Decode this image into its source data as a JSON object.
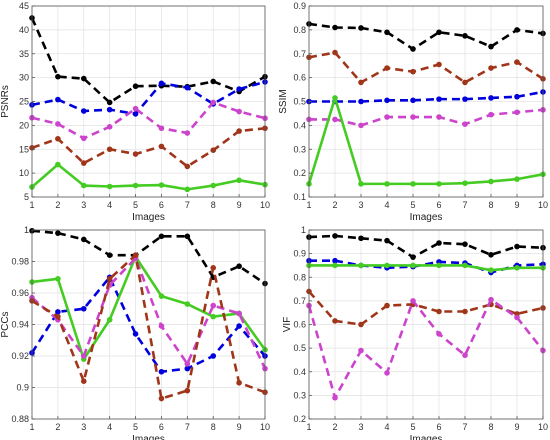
{
  "chart_data": [
    {
      "type": "line",
      "xlabel": "Images",
      "ylabel": "PSNRs",
      "x": [
        1,
        2,
        3,
        4,
        5,
        6,
        7,
        8,
        9,
        10
      ],
      "xlim": [
        1,
        10
      ],
      "ylim": [
        5,
        45
      ],
      "yticks": [
        5,
        10,
        15,
        20,
        25,
        30,
        35,
        40,
        45
      ],
      "grid": true,
      "series": [
        {
          "color": "#000000",
          "style": "dashed",
          "values": [
            42.5,
            30.2,
            29.8,
            24.8,
            28.2,
            28.3,
            28.1,
            29.2,
            27.1,
            30.2
          ]
        },
        {
          "color": "#0000dd",
          "style": "dashed",
          "values": [
            24.3,
            25.4,
            23.0,
            23.3,
            22.4,
            28.8,
            27.9,
            24.5,
            27.6,
            29.1
          ]
        },
        {
          "color": "#cc44cc",
          "style": "dashed",
          "values": [
            21.6,
            20.3,
            17.3,
            19.7,
            23.5,
            19.4,
            18.4,
            24.8,
            22.9,
            21.5
          ]
        },
        {
          "color": "#a0351a",
          "style": "dashed",
          "values": [
            15.3,
            17.2,
            12.1,
            15.0,
            14.0,
            15.6,
            11.4,
            14.8,
            18.8,
            19.4
          ]
        },
        {
          "color": "#44cc22",
          "style": "solid",
          "values": [
            7.1,
            11.8,
            7.4,
            7.2,
            7.4,
            7.5,
            6.6,
            7.4,
            8.5,
            7.6
          ]
        }
      ]
    },
    {
      "type": "line",
      "xlabel": "Images",
      "ylabel": "SSIM",
      "x": [
        1,
        2,
        3,
        4,
        5,
        6,
        7,
        8,
        9,
        10
      ],
      "xlim": [
        1,
        10
      ],
      "ylim": [
        0.1,
        0.9
      ],
      "yticks": [
        0.1,
        0.2,
        0.3,
        0.4,
        0.5,
        0.6,
        0.7,
        0.8,
        0.9
      ],
      "grid": true,
      "series": [
        {
          "color": "#000000",
          "style": "dashed",
          "values": [
            0.825,
            0.81,
            0.808,
            0.79,
            0.72,
            0.79,
            0.775,
            0.73,
            0.8,
            0.785
          ]
        },
        {
          "color": "#a0351a",
          "style": "dashed",
          "values": [
            0.685,
            0.705,
            0.58,
            0.64,
            0.625,
            0.655,
            0.58,
            0.64,
            0.665,
            0.595
          ]
        },
        {
          "color": "#0000dd",
          "style": "dashed",
          "values": [
            0.5,
            0.5,
            0.5,
            0.505,
            0.505,
            0.51,
            0.51,
            0.515,
            0.52,
            0.54
          ]
        },
        {
          "color": "#cc44cc",
          "style": "dashed",
          "values": [
            0.425,
            0.425,
            0.4,
            0.435,
            0.435,
            0.435,
            0.405,
            0.445,
            0.455,
            0.465
          ]
        },
        {
          "color": "#44cc22",
          "style": "solid",
          "values": [
            0.155,
            0.515,
            0.155,
            0.155,
            0.155,
            0.155,
            0.158,
            0.165,
            0.175,
            0.195
          ]
        }
      ]
    },
    {
      "type": "line",
      "xlabel": "Images",
      "ylabel": "PCCs",
      "x": [
        1,
        2,
        3,
        4,
        5,
        6,
        7,
        8,
        9,
        10
      ],
      "xlim": [
        1,
        10
      ],
      "ylim": [
        0.88,
        1.0
      ],
      "yticks": [
        0.88,
        0.9,
        0.92,
        0.94,
        0.96,
        0.98,
        1.0
      ],
      "grid": true,
      "series": [
        {
          "color": "#000000",
          "style": "dashed",
          "values": [
            0.9995,
            0.998,
            0.994,
            0.984,
            0.984,
            0.996,
            0.996,
            0.97,
            0.977,
            0.966
          ]
        },
        {
          "color": "#0000dd",
          "style": "dashed",
          "values": [
            0.922,
            0.948,
            0.95,
            0.97,
            0.934,
            0.91,
            0.912,
            0.92,
            0.939,
            0.92
          ]
        },
        {
          "color": "#44cc22",
          "style": "solid",
          "values": [
            0.967,
            0.969,
            0.918,
            0.943,
            0.983,
            0.958,
            0.953,
            0.945,
            0.947,
            0.924
          ]
        },
        {
          "color": "#cc44cc",
          "style": "dashed",
          "values": [
            0.957,
            0.943,
            0.92,
            0.965,
            0.982,
            0.939,
            0.915,
            0.952,
            0.947,
            0.912
          ]
        },
        {
          "color": "#a0351a",
          "style": "dashed",
          "values": [
            0.955,
            0.945,
            0.904,
            0.969,
            0.984,
            0.893,
            0.898,
            0.976,
            0.903,
            0.897
          ]
        }
      ]
    },
    {
      "type": "line",
      "xlabel": "Images",
      "ylabel": "VIF",
      "x": [
        1,
        2,
        3,
        4,
        5,
        6,
        7,
        8,
        9,
        10
      ],
      "xlim": [
        1,
        10
      ],
      "ylim": [
        0.2,
        1.0
      ],
      "yticks": [
        0.2,
        0.3,
        0.4,
        0.5,
        0.6,
        0.7,
        0.8,
        0.9,
        1.0
      ],
      "grid": true,
      "series": [
        {
          "color": "#000000",
          "style": "dashed",
          "values": [
            0.97,
            0.975,
            0.965,
            0.955,
            0.885,
            0.945,
            0.94,
            0.895,
            0.93,
            0.925
          ]
        },
        {
          "color": "#0000dd",
          "style": "dashed",
          "values": [
            0.87,
            0.87,
            0.85,
            0.84,
            0.845,
            0.865,
            0.86,
            0.82,
            0.85,
            0.855
          ]
        },
        {
          "color": "#44cc22",
          "style": "solid",
          "values": [
            0.85,
            0.85,
            0.85,
            0.85,
            0.85,
            0.85,
            0.85,
            0.83,
            0.84,
            0.84
          ]
        },
        {
          "color": "#a0351a",
          "style": "dashed",
          "values": [
            0.74,
            0.615,
            0.6,
            0.68,
            0.685,
            0.655,
            0.655,
            0.685,
            0.645,
            0.67
          ]
        },
        {
          "color": "#cc44cc",
          "style": "dashed",
          "values": [
            0.68,
            0.29,
            0.49,
            0.395,
            0.7,
            0.56,
            0.47,
            0.705,
            0.63,
            0.49
          ]
        }
      ]
    }
  ]
}
